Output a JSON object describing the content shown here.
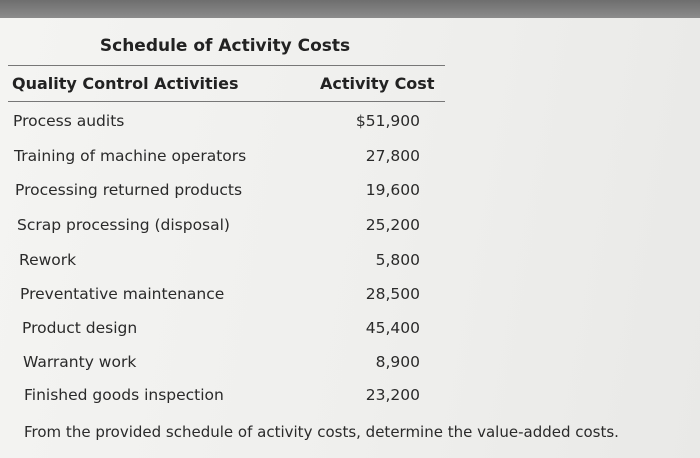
{
  "title": "Schedule of Activity Costs",
  "headers": {
    "activities": "Quality Control Activities",
    "cost": "Activity Cost"
  },
  "rows": [
    {
      "label": "Process audits",
      "value": "$51,900"
    },
    {
      "label": "Training of machine operators",
      "value": "27,800"
    },
    {
      "label": "Processing returned products",
      "value": "19,600"
    },
    {
      "label": "Scrap processing (disposal)",
      "value": "25,200"
    },
    {
      "label": "Rework",
      "value": "5,800"
    },
    {
      "label": "Preventative maintenance",
      "value": "28,500"
    },
    {
      "label": "Product design",
      "value": "45,400"
    },
    {
      "label": "Warranty work",
      "value": "8,900"
    },
    {
      "label": "Finished goods inspection",
      "value": "23,200"
    }
  ],
  "footer": "From the provided schedule of activity costs, determine the value-added costs."
}
